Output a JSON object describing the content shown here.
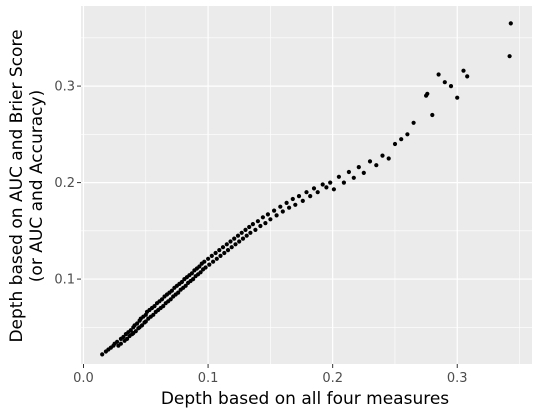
{
  "chart_data": {
    "type": "scatter",
    "title": "",
    "xlabel": "Depth based on all four measures",
    "ylabel_line1": "Depth based on AUC and Brier Score",
    "ylabel_line2": "(or AUC and Accuracy)",
    "xlim": [
      -0.002,
      0.36
    ],
    "ylim": [
      0.012,
      0.383
    ],
    "x_ticks": [
      0.0,
      0.1,
      0.2,
      0.3
    ],
    "x_tick_labels": [
      "0.0",
      "0.1",
      "0.2",
      "0.3"
    ],
    "y_ticks": [
      0.1,
      0.2,
      0.3
    ],
    "y_tick_labels": [
      "0.1",
      "0.2",
      "0.3"
    ],
    "grid": true,
    "legend": "none",
    "panel_color": "#ebebeb",
    "grid_color": "#ffffff",
    "point_color": "#000000",
    "points": [
      [
        0.015,
        0.022
      ],
      [
        0.018,
        0.025
      ],
      [
        0.02,
        0.027
      ],
      [
        0.022,
        0.029
      ],
      [
        0.024,
        0.031
      ],
      [
        0.025,
        0.033
      ],
      [
        0.027,
        0.035
      ],
      [
        0.028,
        0.031
      ],
      [
        0.03,
        0.038
      ],
      [
        0.03,
        0.033
      ],
      [
        0.032,
        0.04
      ],
      [
        0.033,
        0.036
      ],
      [
        0.034,
        0.043
      ],
      [
        0.035,
        0.038
      ],
      [
        0.036,
        0.045
      ],
      [
        0.037,
        0.041
      ],
      [
        0.038,
        0.047
      ],
      [
        0.039,
        0.043
      ],
      [
        0.04,
        0.05
      ],
      [
        0.04,
        0.044
      ],
      [
        0.041,
        0.052
      ],
      [
        0.042,
        0.046
      ],
      [
        0.043,
        0.054
      ],
      [
        0.044,
        0.049
      ],
      [
        0.045,
        0.057
      ],
      [
        0.045,
        0.05
      ],
      [
        0.046,
        0.059
      ],
      [
        0.047,
        0.052
      ],
      [
        0.048,
        0.061
      ],
      [
        0.049,
        0.055
      ],
      [
        0.05,
        0.063
      ],
      [
        0.05,
        0.056
      ],
      [
        0.051,
        0.066
      ],
      [
        0.052,
        0.059
      ],
      [
        0.053,
        0.068
      ],
      [
        0.054,
        0.061
      ],
      [
        0.055,
        0.07
      ],
      [
        0.056,
        0.063
      ],
      [
        0.057,
        0.072
      ],
      [
        0.058,
        0.066
      ],
      [
        0.059,
        0.075
      ],
      [
        0.06,
        0.068
      ],
      [
        0.061,
        0.077
      ],
      [
        0.062,
        0.07
      ],
      [
        0.063,
        0.079
      ],
      [
        0.064,
        0.072
      ],
      [
        0.065,
        0.082
      ],
      [
        0.066,
        0.075
      ],
      [
        0.067,
        0.084
      ],
      [
        0.068,
        0.077
      ],
      [
        0.069,
        0.086
      ],
      [
        0.07,
        0.079
      ],
      [
        0.071,
        0.088
      ],
      [
        0.072,
        0.082
      ],
      [
        0.073,
        0.091
      ],
      [
        0.074,
        0.084
      ],
      [
        0.075,
        0.093
      ],
      [
        0.076,
        0.086
      ],
      [
        0.077,
        0.095
      ],
      [
        0.078,
        0.089
      ],
      [
        0.079,
        0.097
      ],
      [
        0.08,
        0.091
      ],
      [
        0.081,
        0.1
      ],
      [
        0.082,
        0.093
      ],
      [
        0.083,
        0.102
      ],
      [
        0.084,
        0.096
      ],
      [
        0.085,
        0.104
      ],
      [
        0.086,
        0.098
      ],
      [
        0.087,
        0.106
      ],
      [
        0.088,
        0.1
      ],
      [
        0.089,
        0.109
      ],
      [
        0.09,
        0.103
      ],
      [
        0.091,
        0.111
      ],
      [
        0.092,
        0.105
      ],
      [
        0.093,
        0.113
      ],
      [
        0.094,
        0.107
      ],
      [
        0.095,
        0.116
      ],
      [
        0.096,
        0.11
      ],
      [
        0.097,
        0.118
      ],
      [
        0.098,
        0.112
      ],
      [
        0.1,
        0.121
      ],
      [
        0.101,
        0.115
      ],
      [
        0.103,
        0.124
      ],
      [
        0.104,
        0.118
      ],
      [
        0.106,
        0.127
      ],
      [
        0.107,
        0.121
      ],
      [
        0.109,
        0.13
      ],
      [
        0.11,
        0.124
      ],
      [
        0.112,
        0.133
      ],
      [
        0.113,
        0.127
      ],
      [
        0.115,
        0.136
      ],
      [
        0.116,
        0.13
      ],
      [
        0.118,
        0.139
      ],
      [
        0.119,
        0.133
      ],
      [
        0.121,
        0.142
      ],
      [
        0.122,
        0.136
      ],
      [
        0.124,
        0.145
      ],
      [
        0.125,
        0.139
      ],
      [
        0.127,
        0.148
      ],
      [
        0.128,
        0.142
      ],
      [
        0.13,
        0.151
      ],
      [
        0.131,
        0.145
      ],
      [
        0.133,
        0.154
      ],
      [
        0.134,
        0.148
      ],
      [
        0.136,
        0.157
      ],
      [
        0.138,
        0.151
      ],
      [
        0.14,
        0.16
      ],
      [
        0.142,
        0.155
      ],
      [
        0.144,
        0.164
      ],
      [
        0.146,
        0.158
      ],
      [
        0.148,
        0.167
      ],
      [
        0.15,
        0.162
      ],
      [
        0.153,
        0.171
      ],
      [
        0.155,
        0.166
      ],
      [
        0.158,
        0.175
      ],
      [
        0.16,
        0.17
      ],
      [
        0.163,
        0.179
      ],
      [
        0.165,
        0.174
      ],
      [
        0.168,
        0.183
      ],
      [
        0.17,
        0.177
      ],
      [
        0.173,
        0.186
      ],
      [
        0.176,
        0.181
      ],
      [
        0.179,
        0.19
      ],
      [
        0.182,
        0.186
      ],
      [
        0.185,
        0.194
      ],
      [
        0.188,
        0.19
      ],
      [
        0.192,
        0.198
      ],
      [
        0.195,
        0.195
      ],
      [
        0.198,
        0.2
      ],
      [
        0.201,
        0.193
      ],
      [
        0.205,
        0.206
      ],
      [
        0.209,
        0.2
      ],
      [
        0.213,
        0.211
      ],
      [
        0.217,
        0.205
      ],
      [
        0.221,
        0.216
      ],
      [
        0.225,
        0.21
      ],
      [
        0.23,
        0.222
      ],
      [
        0.235,
        0.218
      ],
      [
        0.24,
        0.228
      ],
      [
        0.245,
        0.225
      ],
      [
        0.25,
        0.24
      ],
      [
        0.255,
        0.245
      ],
      [
        0.26,
        0.25
      ],
      [
        0.265,
        0.262
      ],
      [
        0.275,
        0.29
      ],
      [
        0.276,
        0.292
      ],
      [
        0.28,
        0.27
      ],
      [
        0.285,
        0.312
      ],
      [
        0.29,
        0.304
      ],
      [
        0.295,
        0.3
      ],
      [
        0.3,
        0.288
      ],
      [
        0.305,
        0.316
      ],
      [
        0.308,
        0.31
      ],
      [
        0.342,
        0.331
      ],
      [
        0.343,
        0.365
      ]
    ]
  }
}
